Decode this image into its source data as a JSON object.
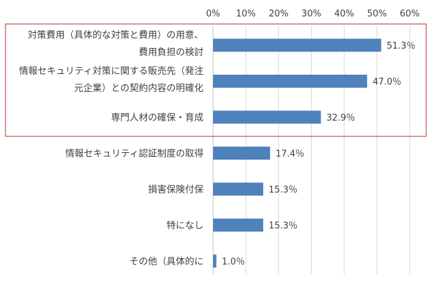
{
  "chart_data": {
    "type": "bar",
    "orientation": "horizontal",
    "categories": [
      [
        "対策費用（具体的な対策と費用）の用意、",
        "費用負担の検討"
      ],
      [
        "情報セキュリティ対策に関する販売先（発注",
        "元企業）との契約内容の明確化"
      ],
      [
        "専門人材の確保・育成"
      ],
      [
        "情報セキュリティ認証制度の取得"
      ],
      [
        "損害保険付保"
      ],
      [
        "特になし"
      ],
      [
        "その他（具体的に"
      ]
    ],
    "values": [
      51.3,
      47.0,
      32.9,
      17.4,
      15.3,
      15.3,
      1.0
    ],
    "value_labels": [
      "51.3％",
      "47.0％",
      "32.9％",
      "17.4％",
      "15.3％",
      "15.3％",
      "1.0％"
    ],
    "x_ticks": [
      "0%",
      "10%",
      "20%",
      "30%",
      "40%",
      "50%",
      "60%"
    ],
    "xlim": [
      0,
      60
    ],
    "x_axis_position": "top",
    "grid": true,
    "highlight_box": {
      "categories": [
        0,
        1,
        2
      ],
      "color": "#c0504d"
    },
    "bar_color": "#4f81bd"
  }
}
